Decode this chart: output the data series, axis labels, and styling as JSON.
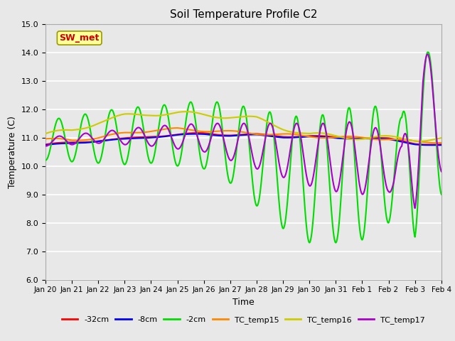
{
  "title": "Soil Temperature Profile C2",
  "xlabel": "Time",
  "ylabel": "Temperature (C)",
  "ylim": [
    6.0,
    15.0
  ],
  "yticks": [
    6.0,
    7.0,
    8.0,
    9.0,
    10.0,
    11.0,
    12.0,
    13.0,
    14.0,
    15.0
  ],
  "xtick_labels": [
    "Jan 20",
    "Jan 21",
    "Jan 22",
    "Jan 23",
    "Jan 24",
    "Jan 25",
    "Jan 26",
    "Jan 27",
    "Jan 28",
    "Jan 29",
    "Jan 30",
    "Jan 31",
    "Feb 1",
    "Feb 2",
    "Feb 3",
    "Feb 4"
  ],
  "bg_color": "#e8e8e8",
  "plot_bg_color": "#e8e8e8",
  "grid_color": "#ffffff",
  "series": {
    "neg32cm": {
      "color": "#ff0000",
      "label": "-32cm",
      "lw": 1.5
    },
    "neg8cm": {
      "color": "#0000ff",
      "label": "-8cm",
      "lw": 1.5
    },
    "neg2cm": {
      "color": "#00dd00",
      "label": "-2cm",
      "lw": 1.5
    },
    "TC_temp15": {
      "color": "#ff8800",
      "label": "TC_temp15",
      "lw": 1.5
    },
    "TC_temp16": {
      "color": "#cccc00",
      "label": "TC_temp16",
      "lw": 1.5
    },
    "TC_temp17": {
      "color": "#aa00cc",
      "label": "TC_temp17",
      "lw": 1.5
    }
  },
  "ann_text": "SW_met",
  "ann_color": "#cc0000",
  "ann_bg": "#ffff99",
  "ann_border": "#999900"
}
